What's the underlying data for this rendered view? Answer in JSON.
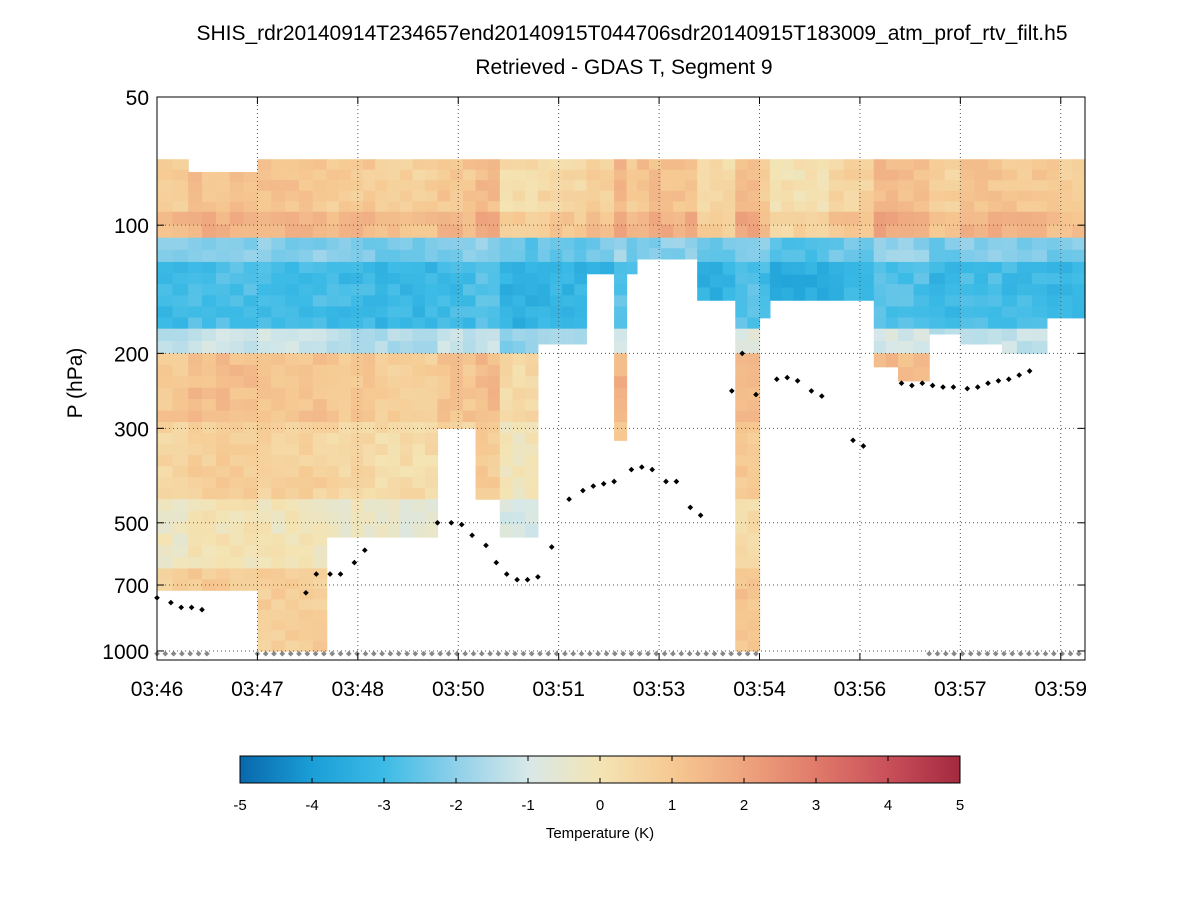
{
  "chart_data": {
    "type": "heatmap",
    "title": "SHIS_rdr20140914T234657end20140915T044706sdr20140915T183009_atm_prof_rtv_filt.h5",
    "subtitle": "Retrieved - GDAS T, Segment 9",
    "xlabel": "",
    "ylabel": "P (hPa)",
    "y_scale": "log",
    "y_reversed": true,
    "ylim": [
      50,
      1050
    ],
    "xlim_minutes": [
      226,
      239.4
    ],
    "x_ticks": [
      {
        "label": "03:46",
        "minutes": 226.0
      },
      {
        "label": "03:47",
        "minutes": 227.45
      },
      {
        "label": "03:48",
        "minutes": 228.9
      },
      {
        "label": "03:50",
        "minutes": 230.35
      },
      {
        "label": "03:51",
        "minutes": 231.8
      },
      {
        "label": "03:53",
        "minutes": 233.25
      },
      {
        "label": "03:54",
        "minutes": 234.7
      },
      {
        "label": "03:56",
        "minutes": 236.15
      },
      {
        "label": "03:57",
        "minutes": 237.6
      },
      {
        "label": "03:59",
        "minutes": 239.05
      }
    ],
    "y_ticks": [
      {
        "label": "50",
        "value": 50
      },
      {
        "label": "100",
        "value": 100
      },
      {
        "label": "200",
        "value": 200
      },
      {
        "label": "300",
        "value": 300
      },
      {
        "label": "500",
        "value": 500
      },
      {
        "label": "700",
        "value": 700
      },
      {
        "label": "1000",
        "value": 1000
      }
    ],
    "colorbar": {
      "label": "Temperature (K)",
      "min": -5,
      "max": 5,
      "ticks": [
        "-5",
        "-4",
        "-3",
        "-2",
        "-1",
        "0",
        "1",
        "2",
        "3",
        "4",
        "5"
      ],
      "stops": [
        "#0868ac",
        "#1a9ed6",
        "#3cbbe6",
        "#8fd0ea",
        "#d8e8e8",
        "#f4e4b4",
        "#f6c992",
        "#eea47e",
        "#e07a6a",
        "#c9505a",
        "#a3293f"
      ]
    },
    "layers": [
      {
        "p_top": 70,
        "p_bottom": 93,
        "value": 0.9
      },
      {
        "p_top": 93,
        "p_bottom": 107,
        "value": 1.4
      },
      {
        "p_top": 107,
        "p_bottom": 122,
        "value": -2.2
      },
      {
        "p_top": 122,
        "p_bottom": 175,
        "value": -3.0
      },
      {
        "p_top": 175,
        "p_bottom": 200,
        "value": -1.4
      },
      {
        "p_top": 200,
        "p_bottom": 290,
        "value": 1.0
      },
      {
        "p_top": 290,
        "p_bottom": 440,
        "value": 0.5
      },
      {
        "p_top": 440,
        "p_bottom": 640,
        "value": -0.3
      },
      {
        "p_top": 640,
        "p_bottom": 1000,
        "value": 0.6
      }
    ],
    "columns": [
      {
        "t0": 226.0,
        "t1": 226.45,
        "p_top": 70,
        "p_bottom": 720,
        "offset": 0.0
      },
      {
        "t0": 226.45,
        "t1": 227.45,
        "p_top": 75,
        "p_bottom": 720,
        "offset": 0.3
      },
      {
        "t0": 227.45,
        "t1": 228.45,
        "p_top": 70,
        "p_bottom": 1000,
        "offset": 0.2
      },
      {
        "t0": 228.45,
        "t1": 229.15,
        "p_top": 70,
        "p_bottom": 540,
        "offset": 0.0
      },
      {
        "t0": 229.15,
        "t1": 230.05,
        "p_top": 70,
        "p_bottom": 540,
        "offset": -0.2
      },
      {
        "t0": 230.05,
        "t1": 230.6,
        "p_top": 70,
        "p_bottom": 300,
        "offset": 0.1
      },
      {
        "t0": 230.6,
        "t1": 230.95,
        "p_top": 70,
        "p_bottom": 440,
        "offset": 0.4
      },
      {
        "t0": 230.95,
        "t1": 231.5,
        "p_top": 70,
        "p_bottom": 540,
        "offset": -0.6
      },
      {
        "t0": 231.5,
        "t1": 232.2,
        "p_top": 70,
        "p_bottom": 190,
        "offset": -0.4
      },
      {
        "t0": 232.2,
        "t1": 232.6,
        "p_top": 70,
        "p_bottom": 130,
        "offset": -0.2
      },
      {
        "t0": 232.6,
        "t1": 232.78,
        "p_top": 70,
        "p_bottom": 320,
        "offset": 0.6
      },
      {
        "t0": 232.78,
        "t1": 232.93,
        "p_top": 70,
        "p_bottom": 130,
        "offset": 0.0
      },
      {
        "t0": 232.93,
        "t1": 233.8,
        "p_top": 70,
        "p_bottom": 120,
        "offset": 0.3
      },
      {
        "t0": 233.8,
        "t1": 234.35,
        "p_top": 70,
        "p_bottom": 150,
        "offset": -0.5
      },
      {
        "t0": 234.35,
        "t1": 234.7,
        "p_top": 70,
        "p_bottom": 1000,
        "offset": 0.5
      },
      {
        "t0": 234.7,
        "t1": 234.85,
        "p_top": 70,
        "p_bottom": 165,
        "offset": 0.0
      },
      {
        "t0": 234.85,
        "t1": 235.7,
        "p_top": 70,
        "p_bottom": 150,
        "offset": -0.8
      },
      {
        "t0": 235.7,
        "t1": 236.35,
        "p_top": 70,
        "p_bottom": 150,
        "offset": -0.3
      },
      {
        "t0": 236.35,
        "t1": 236.7,
        "p_top": 70,
        "p_bottom": 215,
        "offset": 0.5
      },
      {
        "t0": 236.7,
        "t1": 237.15,
        "p_top": 70,
        "p_bottom": 232,
        "offset": 0.4
      },
      {
        "t0": 237.15,
        "t1": 237.6,
        "p_top": 70,
        "p_bottom": 180,
        "offset": -0.2
      },
      {
        "t0": 237.6,
        "t1": 238.2,
        "p_top": 70,
        "p_bottom": 190,
        "offset": 0.2
      },
      {
        "t0": 238.2,
        "t1": 238.85,
        "p_top": 70,
        "p_bottom": 200,
        "offset": 0.1
      },
      {
        "t0": 238.85,
        "t1": 239.4,
        "p_top": 70,
        "p_bottom": 165,
        "offset": -0.1
      }
    ],
    "series": [
      {
        "name": "tropopause_dots",
        "color": "#000000",
        "points": [
          [
            226.0,
            750
          ],
          [
            226.2,
            770
          ],
          [
            226.35,
            790
          ],
          [
            226.5,
            790
          ],
          [
            226.65,
            800
          ],
          [
            228.15,
            730
          ],
          [
            228.3,
            660
          ],
          [
            228.5,
            660
          ],
          [
            228.65,
            660
          ],
          [
            228.85,
            620
          ],
          [
            229.0,
            580
          ],
          [
            230.05,
            500
          ],
          [
            230.25,
            500
          ],
          [
            230.4,
            505
          ],
          [
            230.55,
            535
          ],
          [
            230.75,
            565
          ],
          [
            230.9,
            620
          ],
          [
            231.05,
            660
          ],
          [
            231.2,
            680
          ],
          [
            231.35,
            680
          ],
          [
            231.5,
            670
          ],
          [
            231.7,
            570
          ],
          [
            231.95,
            440
          ],
          [
            232.15,
            420
          ],
          [
            232.3,
            410
          ],
          [
            232.45,
            405
          ],
          [
            232.6,
            400
          ],
          [
            232.85,
            375
          ],
          [
            233.0,
            370
          ],
          [
            233.15,
            375
          ],
          [
            233.35,
            400
          ],
          [
            233.5,
            400
          ],
          [
            233.7,
            460
          ],
          [
            233.85,
            480
          ],
          [
            234.3,
            245
          ],
          [
            234.45,
            200
          ],
          [
            234.65,
            250
          ],
          [
            234.95,
            230
          ],
          [
            235.1,
            228
          ],
          [
            235.25,
            232
          ],
          [
            235.45,
            245
          ],
          [
            235.6,
            252
          ],
          [
            236.05,
            320
          ],
          [
            236.2,
            330
          ],
          [
            236.75,
            235
          ],
          [
            236.9,
            238
          ],
          [
            237.05,
            235
          ],
          [
            237.2,
            238
          ],
          [
            237.35,
            240
          ],
          [
            237.5,
            240
          ],
          [
            237.7,
            242
          ],
          [
            237.85,
            240
          ],
          [
            238.0,
            235
          ],
          [
            238.15,
            232
          ],
          [
            238.3,
            230
          ],
          [
            238.45,
            225
          ],
          [
            238.6,
            220
          ]
        ]
      },
      {
        "name": "surface_dots",
        "color": "#888888",
        "segments": [
          [
            226.0,
            226.8
          ],
          [
            227.45,
            234.75
          ],
          [
            237.15,
            239.4
          ]
        ],
        "pressure": 1015,
        "spacing_minutes": 0.12
      }
    ]
  }
}
